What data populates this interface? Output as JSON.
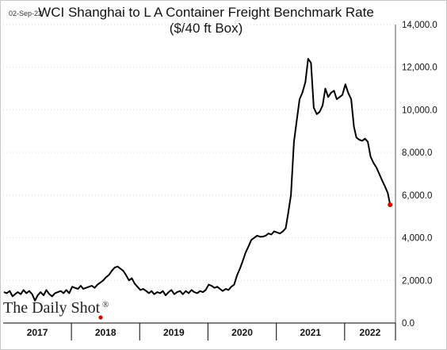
{
  "date_stamp": "02-Sep-22",
  "brand": {
    "name": "The Daily Shot",
    "mark": "®"
  },
  "colors": {
    "line": "#000000",
    "last_point": "#e00000",
    "brand_dot": "#e00000",
    "axis": "#000000"
  },
  "chart_data": {
    "type": "line",
    "title": [
      "WCI Shanghai to L A Container Freight Benchmark Rate",
      "($/40 ft Box)"
    ],
    "xlabel": "",
    "ylabel": "",
    "ylim": [
      0,
      14000
    ],
    "y_ticks": [
      0,
      2000,
      4000,
      6000,
      8000,
      10000,
      12000,
      14000
    ],
    "y_tick_labels": [
      "0.0",
      "2,000.0",
      "4,000.0",
      "6,000.0",
      "8,000.0",
      "10,000.0",
      "12,000.0",
      "14,000.0"
    ],
    "y_axis_side": "right",
    "x_range": [
      "2017-01-01",
      "2022-09-30"
    ],
    "x_year_labels": [
      "2017",
      "2018",
      "2019",
      "2020",
      "2021",
      "2022"
    ],
    "grid": true,
    "legend": "none",
    "last_point_marker": true,
    "series": [
      {
        "x": [
          "2017-01-05",
          "2017-01-20",
          "2017-02-05",
          "2017-02-20",
          "2017-03-05",
          "2017-03-20",
          "2017-04-05",
          "2017-04-20",
          "2017-05-05",
          "2017-05-20",
          "2017-06-05",
          "2017-06-20",
          "2017-07-05",
          "2017-07-20",
          "2017-08-05",
          "2017-08-20",
          "2017-09-05",
          "2017-09-20",
          "2017-10-05",
          "2017-10-20",
          "2017-11-05",
          "2017-11-20",
          "2017-12-05",
          "2017-12-20",
          "2018-01-05",
          "2018-01-20",
          "2018-02-05",
          "2018-02-20",
          "2018-03-05",
          "2018-03-20",
          "2018-04-05",
          "2018-04-20",
          "2018-05-05",
          "2018-05-20",
          "2018-06-05",
          "2018-06-20",
          "2018-07-05",
          "2018-07-20",
          "2018-08-05",
          "2018-08-20",
          "2018-09-05",
          "2018-09-20",
          "2018-10-05",
          "2018-10-20",
          "2018-11-05",
          "2018-11-20",
          "2018-12-05",
          "2018-12-20",
          "2019-01-05",
          "2019-01-20",
          "2019-02-05",
          "2019-02-20",
          "2019-03-05",
          "2019-03-20",
          "2019-04-05",
          "2019-04-20",
          "2019-05-05",
          "2019-05-20",
          "2019-06-05",
          "2019-06-20",
          "2019-07-05",
          "2019-07-20",
          "2019-08-05",
          "2019-08-20",
          "2019-09-05",
          "2019-09-20",
          "2019-10-05",
          "2019-10-20",
          "2019-11-05",
          "2019-11-20",
          "2019-12-05",
          "2019-12-20",
          "2020-01-05",
          "2020-01-20",
          "2020-02-05",
          "2020-02-20",
          "2020-03-05",
          "2020-03-20",
          "2020-04-05",
          "2020-04-20",
          "2020-05-05",
          "2020-05-20",
          "2020-06-05",
          "2020-06-20",
          "2020-07-05",
          "2020-07-20",
          "2020-08-05",
          "2020-08-20",
          "2020-09-05",
          "2020-09-20",
          "2020-10-05",
          "2020-10-20",
          "2020-11-05",
          "2020-11-20",
          "2020-12-05",
          "2020-12-20",
          "2021-01-05",
          "2021-01-20",
          "2021-02-05",
          "2021-02-20",
          "2021-03-05",
          "2021-03-20",
          "2021-04-05",
          "2021-04-20",
          "2021-05-05",
          "2021-05-20",
          "2021-06-05",
          "2021-06-20",
          "2021-07-05",
          "2021-07-20",
          "2021-08-05",
          "2021-08-20",
          "2021-09-05",
          "2021-09-20",
          "2021-10-05",
          "2021-10-20",
          "2021-11-05",
          "2021-11-20",
          "2021-12-05",
          "2021-12-20",
          "2022-01-05",
          "2022-01-20",
          "2022-02-05",
          "2022-02-20",
          "2022-03-05",
          "2022-03-20",
          "2022-04-05",
          "2022-04-20",
          "2022-05-05",
          "2022-05-20",
          "2022-06-05",
          "2022-06-20",
          "2022-07-05",
          "2022-07-20",
          "2022-08-05",
          "2022-08-20",
          "2022-09-01"
        ],
        "values": [
          1450,
          1400,
          1500,
          1250,
          1350,
          1450,
          1350,
          1550,
          1400,
          1500,
          1350,
          1050,
          1300,
          1450,
          1300,
          1550,
          1350,
          1250,
          1400,
          1450,
          1500,
          1400,
          1550,
          1400,
          1700,
          1650,
          1600,
          1750,
          1600,
          1650,
          1700,
          1750,
          1650,
          1800,
          1900,
          2000,
          2150,
          2250,
          2450,
          2600,
          2650,
          2550,
          2450,
          2250,
          2000,
          2100,
          1850,
          1700,
          1550,
          1600,
          1500,
          1400,
          1500,
          1350,
          1450,
          1400,
          1500,
          1300,
          1450,
          1550,
          1350,
          1450,
          1500,
          1350,
          1500,
          1400,
          1550,
          1450,
          1400,
          1500,
          1450,
          1550,
          1800,
          1750,
          1650,
          1700,
          1600,
          1500,
          1600,
          1550,
          1700,
          1800,
          2250,
          2550,
          2900,
          3300,
          3600,
          3900,
          4000,
          4100,
          4050,
          4050,
          4100,
          4200,
          4150,
          4300,
          4250,
          4200,
          4300,
          4450,
          5150,
          6000,
          8500,
          9500,
          10500,
          10800,
          11300,
          12400,
          12200,
          10100,
          9800,
          9900,
          10200,
          11000,
          10600,
          10800,
          10900,
          10500,
          10600,
          10700,
          11200,
          10800,
          10500,
          9200,
          8700,
          8600,
          8550,
          8650,
          8500,
          7800,
          7500,
          7300,
          7000,
          6700,
          6400,
          6100,
          5550
        ]
      }
    ]
  }
}
